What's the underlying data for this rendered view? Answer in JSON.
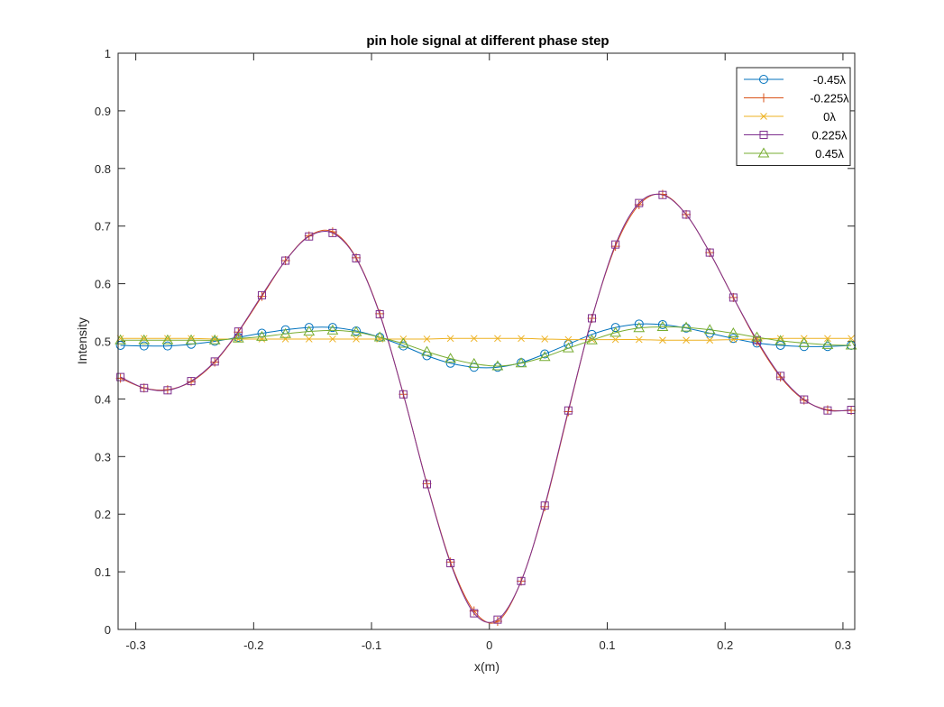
{
  "chart_data": {
    "type": "line",
    "title": "pin hole signal at different phase step",
    "xlabel": "x(m)",
    "ylabel": "Intensity",
    "xlim": [
      -0.315,
      0.31
    ],
    "ylim": [
      0,
      1
    ],
    "xticks": [
      -0.3,
      -0.2,
      -0.1,
      0,
      0.1,
      0.2,
      0.3
    ],
    "xtick_labels": [
      "-0.3",
      "-0.2",
      "-0.1",
      "0",
      "0.1",
      "0.2",
      "0.3"
    ],
    "yticks": [
      0,
      0.1,
      0.2,
      0.3,
      0.4,
      0.5,
      0.6,
      0.7,
      0.8,
      0.9,
      1
    ],
    "ytick_labels": [
      "0",
      "0.1",
      "0.2",
      "0.3",
      "0.4",
      "0.5",
      "0.6",
      "0.7",
      "0.8",
      "0.9",
      "1"
    ],
    "grid": false,
    "legend_position": "top-right",
    "x": [
      -0.313,
      -0.293,
      -0.273,
      -0.253,
      -0.233,
      -0.213,
      -0.193,
      -0.173,
      -0.153,
      -0.133,
      -0.113,
      -0.093,
      -0.073,
      -0.053,
      -0.033,
      -0.013,
      0.007,
      0.027,
      0.047,
      0.067,
      0.087,
      0.107,
      0.127,
      0.147,
      0.167,
      0.187,
      0.207,
      0.227,
      0.247,
      0.267,
      0.287,
      0.307
    ],
    "series": [
      {
        "name": "-0.45λ",
        "color": "#0072BD",
        "marker": "circle",
        "values": [
          0.493,
          0.492,
          0.492,
          0.495,
          0.5,
          0.507,
          0.514,
          0.52,
          0.524,
          0.524,
          0.518,
          0.507,
          0.492,
          0.475,
          0.462,
          0.455,
          0.455,
          0.463,
          0.478,
          0.495,
          0.512,
          0.524,
          0.53,
          0.529,
          0.523,
          0.514,
          0.505,
          0.497,
          0.493,
          0.491,
          0.491,
          0.493
        ]
      },
      {
        "name": "-0.225λ",
        "color": "#D95319",
        "marker": "plus",
        "values": [
          0.436,
          0.419,
          0.416,
          0.43,
          0.464,
          0.516,
          0.578,
          0.64,
          0.683,
          0.69,
          0.645,
          0.548,
          0.408,
          0.253,
          0.117,
          0.032,
          0.014,
          0.084,
          0.213,
          0.378,
          0.54,
          0.665,
          0.737,
          0.755,
          0.72,
          0.654,
          0.576,
          0.5,
          0.438,
          0.398,
          0.381,
          0.38
        ]
      },
      {
        "name": "0λ",
        "color": "#EDB120",
        "marker": "x",
        "values": [
          0.505,
          0.505,
          0.505,
          0.505,
          0.504,
          0.504,
          0.504,
          0.504,
          0.504,
          0.504,
          0.504,
          0.504,
          0.504,
          0.504,
          0.505,
          0.505,
          0.505,
          0.505,
          0.504,
          0.503,
          0.503,
          0.503,
          0.503,
          0.502,
          0.502,
          0.502,
          0.503,
          0.504,
          0.505,
          0.505,
          0.505,
          0.505
        ]
      },
      {
        "name": "0.225λ",
        "color": "#7E2F8E",
        "marker": "square",
        "values": [
          0.438,
          0.419,
          0.415,
          0.431,
          0.465,
          0.517,
          0.58,
          0.64,
          0.682,
          0.688,
          0.644,
          0.547,
          0.408,
          0.252,
          0.115,
          0.028,
          0.017,
          0.084,
          0.215,
          0.38,
          0.54,
          0.668,
          0.74,
          0.754,
          0.72,
          0.654,
          0.576,
          0.502,
          0.44,
          0.399,
          0.38,
          0.381
        ]
      },
      {
        "name": "0.45λ",
        "color": "#77AC30",
        "marker": "triangle",
        "values": [
          0.502,
          0.502,
          0.502,
          0.502,
          0.502,
          0.505,
          0.508,
          0.513,
          0.517,
          0.519,
          0.516,
          0.507,
          0.496,
          0.482,
          0.47,
          0.461,
          0.457,
          0.462,
          0.473,
          0.488,
          0.502,
          0.515,
          0.523,
          0.525,
          0.524,
          0.52,
          0.514,
          0.507,
          0.501,
          0.497,
          0.494,
          0.493
        ]
      }
    ]
  }
}
